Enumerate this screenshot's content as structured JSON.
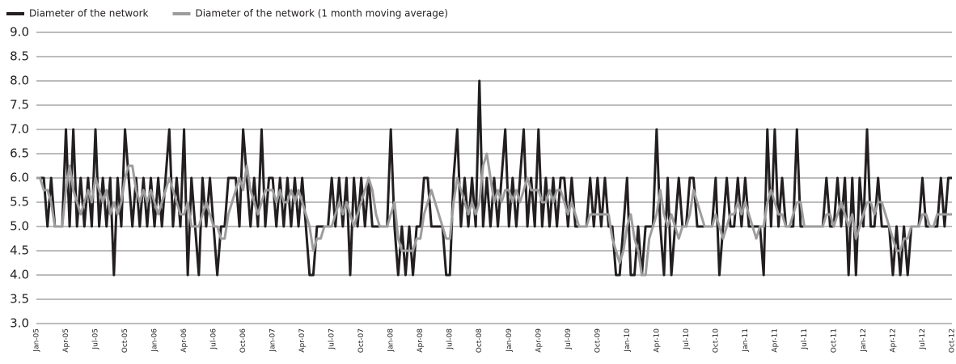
{
  "chart_data": {
    "type": "line",
    "categories": [
      "Jan-05",
      null,
      null,
      null,
      null,
      null,
      null,
      null,
      "Apr-05",
      null,
      null,
      null,
      null,
      null,
      null,
      null,
      "Jul-05",
      null,
      null,
      null,
      null,
      null,
      null,
      null,
      "Oct-05",
      null,
      null,
      null,
      null,
      null,
      null,
      null,
      "Jan-06",
      null,
      null,
      null,
      null,
      null,
      null,
      null,
      "Apr-06",
      null,
      null,
      null,
      null,
      null,
      null,
      null,
      "Jul-06",
      null,
      null,
      null,
      null,
      null,
      null,
      null,
      "Oct-06",
      null,
      null,
      null,
      null,
      null,
      null,
      null,
      "Jan-07",
      null,
      null,
      null,
      null,
      null,
      null,
      null,
      "Apr-07",
      null,
      null,
      null,
      null,
      null,
      null,
      null,
      "Jul-07",
      null,
      null,
      null,
      null,
      null,
      null,
      null,
      "Oct-07",
      null,
      null,
      null,
      null,
      null,
      null,
      null,
      "Jan-08",
      null,
      null,
      null,
      null,
      null,
      null,
      null,
      "Apr-08",
      null,
      null,
      null,
      null,
      null,
      null,
      null,
      "Jul-08",
      null,
      null,
      null,
      null,
      null,
      null,
      null,
      "Oct-08",
      null,
      null,
      null,
      null,
      null,
      null,
      null,
      "Jan-09",
      null,
      null,
      null,
      null,
      null,
      null,
      null,
      "Apr-09",
      null,
      null,
      null,
      null,
      null,
      null,
      null,
      "Jul-09",
      null,
      null,
      null,
      null,
      null,
      null,
      null,
      "Oct-09",
      null,
      null,
      null,
      null,
      null,
      null,
      null,
      "Jan-10",
      null,
      null,
      null,
      null,
      null,
      null,
      null,
      "Apr-10",
      null,
      null,
      null,
      null,
      null,
      null,
      null,
      "Jul-10",
      null,
      null,
      null,
      null,
      null,
      null,
      null,
      "Oct-10",
      null,
      null,
      null,
      null,
      null,
      null,
      null,
      "Jan-11",
      null,
      null,
      null,
      null,
      null,
      null,
      null,
      "Apr-11",
      null,
      null,
      null,
      null,
      null,
      null,
      null,
      "Jul-11",
      null,
      null,
      null,
      null,
      null,
      null,
      null,
      "Oct-11",
      null,
      null,
      null,
      null,
      null,
      null,
      null,
      "Jan-12",
      null,
      null,
      null,
      null,
      null,
      null,
      null,
      "Apr-12",
      null,
      null,
      null,
      null,
      null,
      null,
      null,
      "Jul-12",
      null,
      null,
      null,
      null,
      null,
      null,
      null,
      "Oct-12"
    ],
    "series": [
      {
        "name": "Diameter of the network",
        "color": "#231f20",
        "values": [
          6,
          6,
          6,
          5,
          6,
          5,
          5,
          5,
          7,
          5,
          7,
          5,
          6,
          5,
          6,
          5,
          7,
          5,
          6,
          5,
          6,
          4,
          6,
          5,
          7,
          6,
          5,
          6,
          5,
          6,
          5,
          6,
          5,
          6,
          5,
          6,
          7,
          5,
          6,
          5,
          7,
          4,
          6,
          5,
          4,
          6,
          5,
          6,
          5,
          4,
          5,
          5,
          6,
          6,
          6,
          5,
          7,
          6,
          5,
          6,
          5,
          7,
          5,
          6,
          6,
          5,
          6,
          5,
          6,
          5,
          6,
          5,
          6,
          5,
          4,
          4,
          5,
          5,
          5,
          5,
          6,
          5,
          6,
          5,
          6,
          4,
          6,
          5,
          6,
          5,
          6,
          5,
          5,
          5,
          5,
          5,
          7,
          5,
          4,
          5,
          4,
          5,
          4,
          5,
          5,
          6,
          6,
          5,
          5,
          5,
          5,
          4,
          4,
          6,
          7,
          5,
          6,
          5,
          6,
          5,
          8,
          5,
          6,
          5,
          6,
          5,
          6,
          7,
          5,
          6,
          5,
          6,
          7,
          5,
          6,
          5,
          7,
          5,
          6,
          5,
          6,
          5,
          6,
          6,
          5,
          6,
          5,
          5,
          5,
          5,
          6,
          5,
          6,
          5,
          6,
          5,
          5,
          4,
          4,
          5,
          6,
          4,
          4,
          5,
          4,
          5,
          5,
          5,
          7,
          5,
          4,
          6,
          4,
          5,
          6,
          5,
          5,
          6,
          6,
          5,
          5,
          5,
          5,
          5,
          6,
          4,
          5,
          6,
          5,
          5,
          6,
          5,
          6,
          5,
          5,
          5,
          5,
          4,
          7,
          5,
          7,
          5,
          6,
          5,
          5,
          5,
          7,
          5,
          5,
          5,
          5,
          5,
          5,
          5,
          6,
          5,
          5,
          6,
          5,
          6,
          4,
          6,
          4,
          6,
          5,
          7,
          5,
          5,
          6,
          5,
          5,
          5,
          4,
          5,
          4,
          5,
          4,
          5,
          5,
          5,
          6,
          5,
          5,
          5,
          5,
          6,
          5,
          6,
          6
        ]
      },
      {
        "name": "Diameter of the network (1 month moving average)",
        "color": "#9d9d9d",
        "values": [
          6,
          6,
          5.75,
          5.75,
          5.5,
          5,
          5,
          5,
          5.75,
          6.25,
          5.75,
          5.5,
          5.25,
          5.5,
          5.75,
          5.5,
          6,
          5.75,
          5.5,
          5.75,
          5.25,
          5.5,
          5.25,
          5.5,
          6,
          6.25,
          6.25,
          5.75,
          5.5,
          5.75,
          5.5,
          5.75,
          5.5,
          5.25,
          5.5,
          5.75,
          6,
          5.75,
          5.5,
          5.25,
          5.25,
          5.5,
          5,
          5,
          5,
          5.25,
          5.5,
          5.25,
          5,
          5,
          4.75,
          4.75,
          5.25,
          5.5,
          5.75,
          6,
          5.75,
          6.25,
          5.75,
          5.5,
          5.25,
          5.5,
          5.75,
          5.75,
          5.75,
          5.5,
          5.75,
          5.5,
          5.5,
          5.75,
          5.5,
          5.75,
          5.5,
          5.25,
          5,
          4.5,
          4.75,
          4.75,
          5,
          5,
          5,
          5.25,
          5.5,
          5.25,
          5.5,
          5.25,
          5,
          5.25,
          5.5,
          5.75,
          6,
          5.75,
          5.25,
          5,
          5,
          5,
          5.25,
          5.5,
          4.75,
          4.5,
          4.5,
          4.5,
          4.5,
          4.75,
          4.75,
          5.25,
          5.5,
          5.75,
          5.5,
          5.25,
          5,
          4.75,
          4.75,
          5.5,
          6,
          5.75,
          5.5,
          5.25,
          5.5,
          5.25,
          5.5,
          6.25,
          6.5,
          6,
          5.5,
          5.75,
          5.5,
          5.75,
          5.75,
          5.5,
          5.75,
          5.5,
          5.75,
          6,
          5.75,
          5.75,
          5.75,
          5.5,
          5.5,
          5.75,
          5.5,
          5.75,
          5.75,
          5.5,
          5.25,
          5.5,
          5.25,
          5,
          5,
          5,
          5.25,
          5.25,
          5.25,
          5.25,
          5.25,
          5.25,
          4.75,
          4.5,
          4.25,
          4.5,
          5,
          5.25,
          4.75,
          4.5,
          4,
          4,
          4.75,
          5,
          5.25,
          5.75,
          5.25,
          5,
          5.25,
          5,
          4.75,
          5,
          5,
          5.25,
          5.75,
          5.5,
          5.25,
          5,
          5,
          5,
          5.25,
          5,
          4.75,
          5,
          5.25,
          5.25,
          5.5,
          5.25,
          5.5,
          5.25,
          5,
          4.75,
          5,
          5,
          5.5,
          5.75,
          5.5,
          5.25,
          5.25,
          5,
          5,
          5.25,
          5.5,
          5.5,
          5,
          5,
          5,
          5,
          5,
          5,
          5.25,
          5.25,
          5,
          5.25,
          5.5,
          5.25,
          5,
          5.25,
          4.75,
          5,
          5.25,
          5.5,
          5.5,
          5.25,
          5.5,
          5.5,
          5.25,
          5,
          4.75,
          4.5,
          4.5,
          4.75,
          4.75,
          5,
          5,
          5,
          5.25,
          5.25,
          5,
          5,
          5.25,
          5.25,
          5.25,
          5.25,
          5.25
        ]
      }
    ],
    "ylim": [
      3,
      9
    ],
    "yticks": [
      {
        "value": 3,
        "label": "3.0"
      },
      3.5,
      {
        "value": 4,
        "label": "4.0"
      },
      4.5,
      {
        "value": 5,
        "label": "5.0"
      },
      5.5,
      {
        "value": 6,
        "label": "6.0"
      },
      6.5,
      {
        "value": 7,
        "label": "7.0"
      },
      7.5,
      {
        "value": 8,
        "label": "8.0"
      },
      8.5,
      {
        "value": 9,
        "label": "9.0"
      }
    ],
    "grid": true,
    "legend": "top-left"
  }
}
